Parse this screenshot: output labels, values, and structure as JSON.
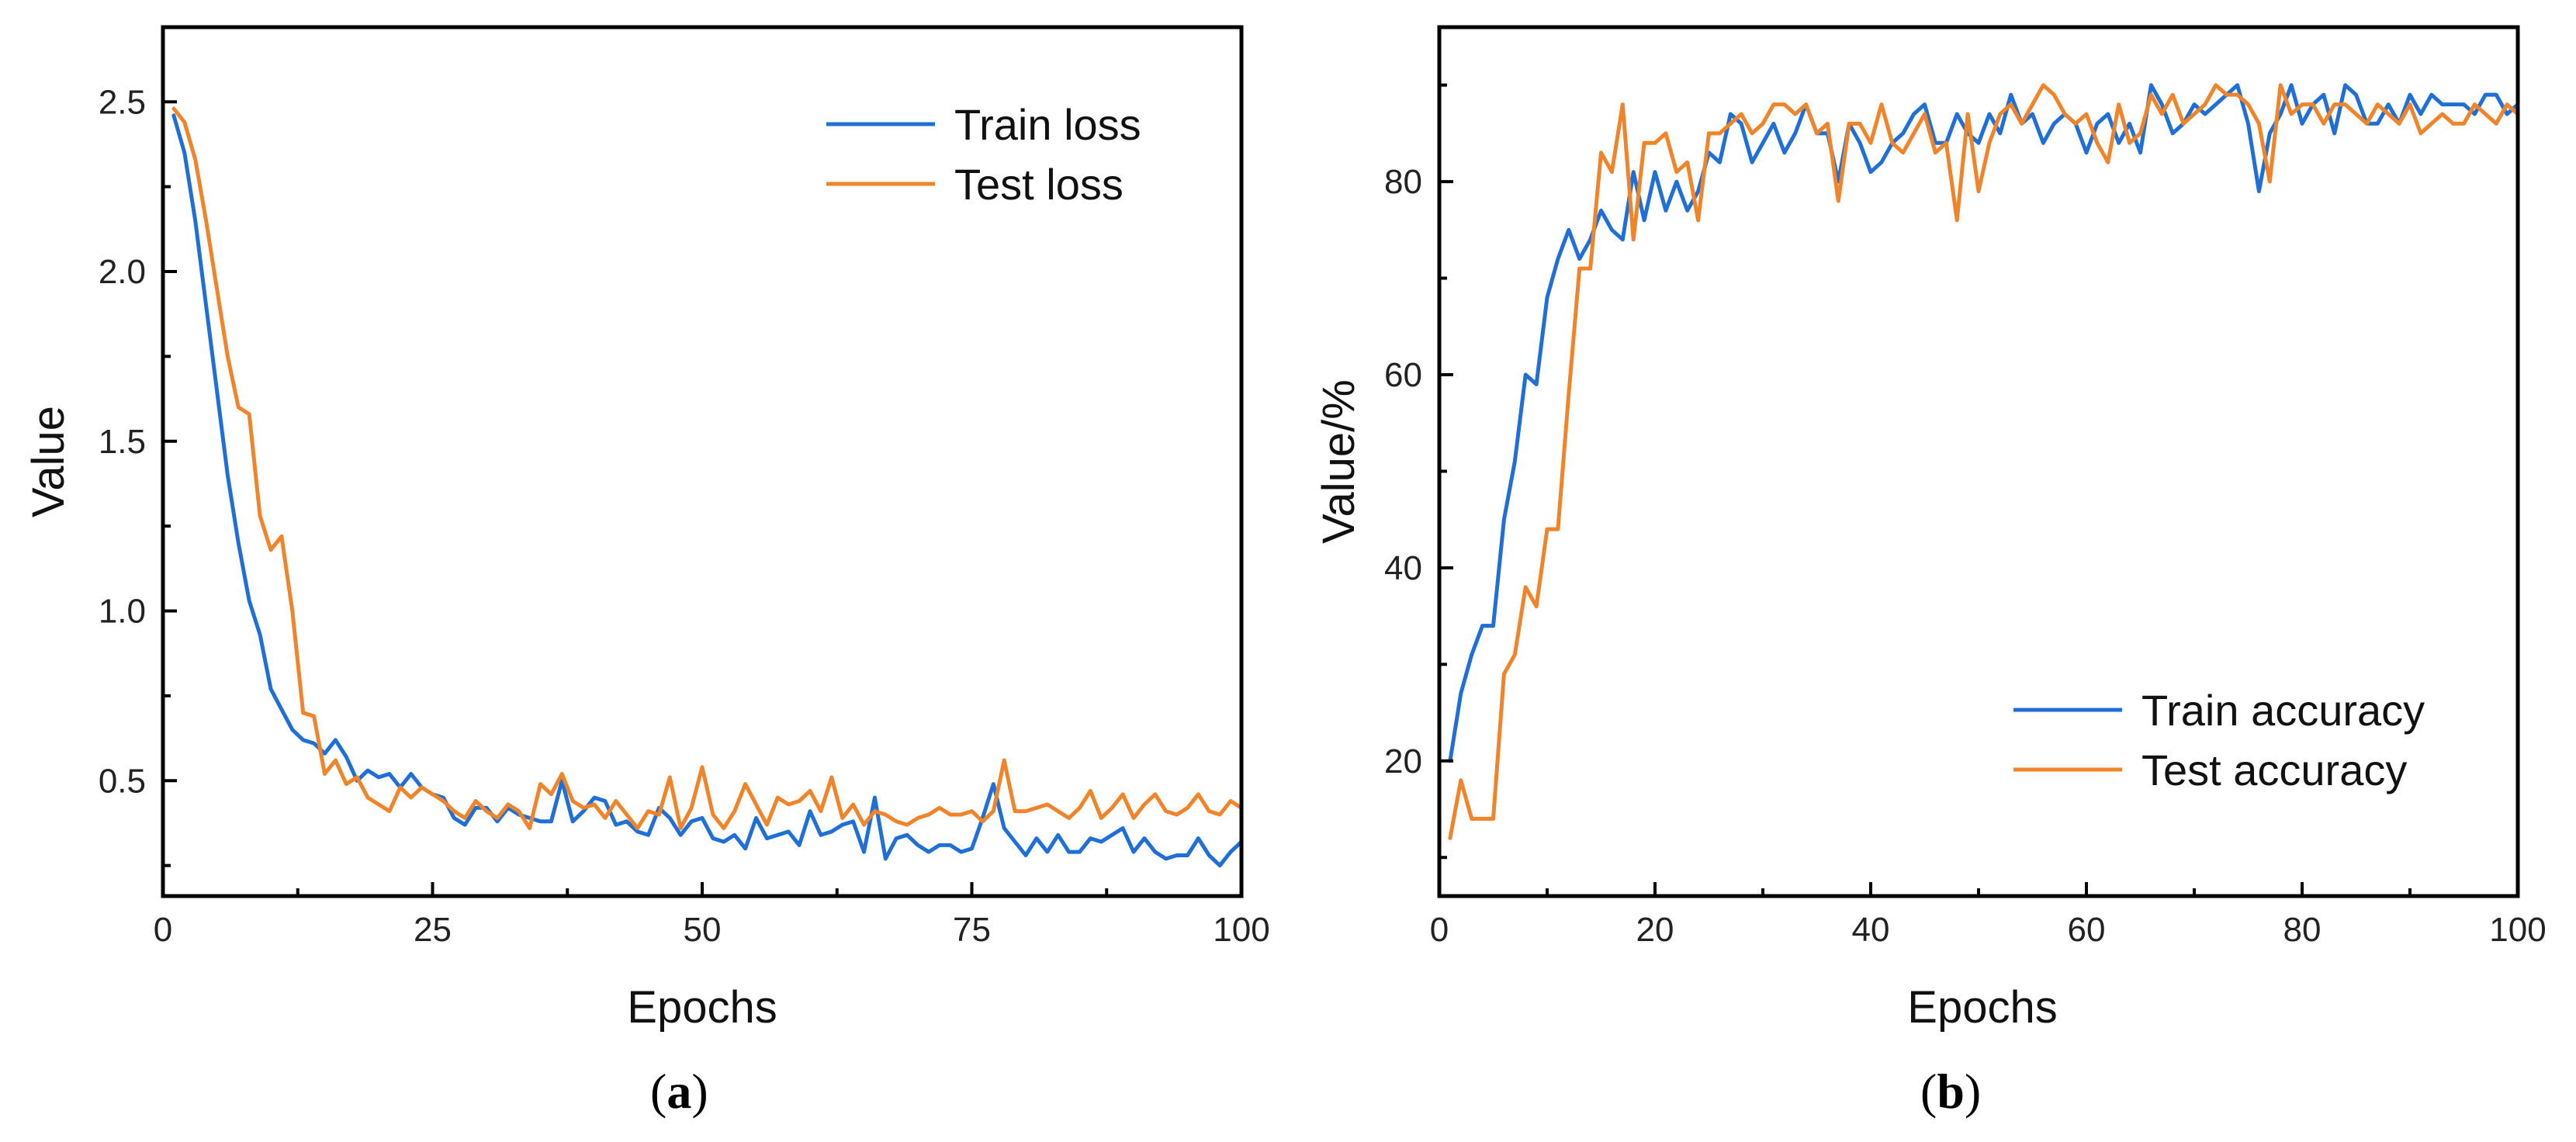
{
  "chart_data": [
    {
      "type": "line",
      "caption": "a",
      "xlabel": "Epochs",
      "ylabel": "Value",
      "xlim": [
        0,
        100
      ],
      "ylim": [
        0.16,
        2.72
      ],
      "xticks": [
        0,
        25,
        50,
        75,
        100
      ],
      "xtick_labels": [
        "0",
        "25",
        "50",
        "75",
        "100"
      ],
      "yticks": [
        0.5,
        1.0,
        1.5,
        2.0,
        2.5
      ],
      "ytick_labels": [
        "0.5",
        "1.0",
        "1.5",
        "2.0",
        "2.5"
      ],
      "legend": "top-right",
      "grid": false,
      "x": [
        1,
        2,
        3,
        4,
        5,
        6,
        7,
        8,
        9,
        10,
        11,
        12,
        13,
        14,
        15,
        16,
        17,
        18,
        19,
        20,
        21,
        22,
        23,
        24,
        25,
        26,
        27,
        28,
        29,
        30,
        31,
        32,
        33,
        34,
        35,
        36,
        37,
        38,
        39,
        40,
        41,
        42,
        43,
        44,
        45,
        46,
        47,
        48,
        49,
        50,
        51,
        52,
        53,
        54,
        55,
        56,
        57,
        58,
        59,
        60,
        61,
        62,
        63,
        64,
        65,
        66,
        67,
        68,
        69,
        70,
        71,
        72,
        73,
        74,
        75,
        76,
        77,
        78,
        79,
        80,
        81,
        82,
        83,
        84,
        85,
        86,
        87,
        88,
        89,
        90,
        91,
        92,
        93,
        94,
        95,
        96,
        97,
        98,
        99,
        100
      ],
      "series": [
        {
          "name": "Train loss",
          "color": "#1f6fd6",
          "values": [
            2.46,
            2.35,
            2.15,
            1.9,
            1.65,
            1.4,
            1.2,
            1.03,
            0.93,
            0.77,
            0.71,
            0.65,
            0.62,
            0.61,
            0.58,
            0.62,
            0.57,
            0.5,
            0.53,
            0.51,
            0.52,
            0.48,
            0.52,
            0.48,
            0.46,
            0.45,
            0.39,
            0.37,
            0.42,
            0.42,
            0.38,
            0.42,
            0.4,
            0.39,
            0.38,
            0.38,
            0.5,
            0.38,
            0.41,
            0.45,
            0.44,
            0.37,
            0.38,
            0.35,
            0.34,
            0.42,
            0.39,
            0.34,
            0.38,
            0.39,
            0.33,
            0.32,
            0.34,
            0.3,
            0.39,
            0.33,
            0.34,
            0.35,
            0.31,
            0.41,
            0.34,
            0.35,
            0.37,
            0.38,
            0.29,
            0.45,
            0.27,
            0.33,
            0.34,
            0.31,
            0.29,
            0.31,
            0.31,
            0.29,
            0.3,
            0.39,
            0.49,
            0.36,
            0.32,
            0.28,
            0.33,
            0.29,
            0.34,
            0.29,
            0.29,
            0.33,
            0.32,
            0.34,
            0.36,
            0.29,
            0.33,
            0.29,
            0.27,
            0.28,
            0.28,
            0.33,
            0.28,
            0.25,
            0.29,
            0.32
          ]
        },
        {
          "name": "Test loss",
          "color": "#f0842a",
          "values": [
            2.48,
            2.44,
            2.33,
            2.15,
            1.95,
            1.75,
            1.6,
            1.58,
            1.28,
            1.18,
            1.22,
            1.0,
            0.7,
            0.69,
            0.52,
            0.56,
            0.49,
            0.51,
            0.45,
            0.43,
            0.41,
            0.48,
            0.45,
            0.48,
            0.46,
            0.44,
            0.41,
            0.39,
            0.44,
            0.41,
            0.39,
            0.43,
            0.41,
            0.36,
            0.49,
            0.46,
            0.52,
            0.44,
            0.42,
            0.43,
            0.39,
            0.44,
            0.4,
            0.36,
            0.41,
            0.4,
            0.51,
            0.36,
            0.42,
            0.54,
            0.4,
            0.36,
            0.41,
            0.49,
            0.43,
            0.37,
            0.45,
            0.43,
            0.44,
            0.47,
            0.41,
            0.51,
            0.39,
            0.43,
            0.37,
            0.41,
            0.4,
            0.38,
            0.37,
            0.39,
            0.4,
            0.42,
            0.4,
            0.4,
            0.41,
            0.38,
            0.41,
            0.56,
            0.41,
            0.41,
            0.42,
            0.43,
            0.41,
            0.39,
            0.42,
            0.47,
            0.39,
            0.42,
            0.46,
            0.39,
            0.43,
            0.46,
            0.41,
            0.4,
            0.42,
            0.46,
            0.41,
            0.4,
            0.44,
            0.42
          ]
        }
      ]
    },
    {
      "type": "line",
      "caption": "b",
      "xlabel": "Epochs",
      "ylabel": "Value/%",
      "xlim": [
        0,
        100
      ],
      "ylim": [
        6,
        96
      ],
      "xticks": [
        0,
        20,
        40,
        60,
        80,
        100
      ],
      "xtick_labels": [
        "0",
        "20",
        "40",
        "60",
        "80",
        "100"
      ],
      "yticks": [
        20,
        40,
        60,
        80
      ],
      "ytick_labels": [
        "20",
        "40",
        "60",
        "80"
      ],
      "legend": "bottom-right",
      "grid": false,
      "x": [
        1,
        2,
        3,
        4,
        5,
        6,
        7,
        8,
        9,
        10,
        11,
        12,
        13,
        14,
        15,
        16,
        17,
        18,
        19,
        20,
        21,
        22,
        23,
        24,
        25,
        26,
        27,
        28,
        29,
        30,
        31,
        32,
        33,
        34,
        35,
        36,
        37,
        38,
        39,
        40,
        41,
        42,
        43,
        44,
        45,
        46,
        47,
        48,
        49,
        50,
        51,
        52,
        53,
        54,
        55,
        56,
        57,
        58,
        59,
        60,
        61,
        62,
        63,
        64,
        65,
        66,
        67,
        68,
        69,
        70,
        71,
        72,
        73,
        74,
        75,
        76,
        77,
        78,
        79,
        80,
        81,
        82,
        83,
        84,
        85,
        86,
        87,
        88,
        89,
        90,
        91,
        92,
        93,
        94,
        95,
        96,
        97,
        98,
        99,
        100
      ],
      "series": [
        {
          "name": "Train accuracy",
          "color": "#1f6fd6",
          "values": [
            20,
            27,
            31,
            34,
            34,
            45,
            51,
            60,
            59,
            68,
            72,
            75,
            72,
            74,
            77,
            75,
            74,
            81,
            76,
            81,
            77,
            80,
            77,
            79,
            83,
            82,
            87,
            86,
            82,
            84,
            86,
            83,
            85,
            88,
            85,
            85,
            80,
            86,
            84,
            81,
            82,
            84,
            85,
            87,
            88,
            84,
            84,
            87,
            85,
            84,
            87,
            85,
            89,
            86,
            87,
            84,
            86,
            87,
            86,
            83,
            86,
            87,
            84,
            86,
            83,
            90,
            88,
            85,
            86,
            88,
            87,
            88,
            89,
            90,
            86,
            79,
            85,
            87,
            90,
            86,
            88,
            89,
            85,
            90,
            89,
            86,
            86,
            88,
            86,
            89,
            87,
            89,
            88,
            88,
            88,
            87,
            89,
            89,
            87,
            88
          ]
        },
        {
          "name": "Test accuracy",
          "color": "#f0842a",
          "values": [
            12,
            18,
            14,
            14,
            14,
            29,
            31,
            38,
            36,
            44,
            44,
            58,
            71,
            71,
            83,
            81,
            88,
            74,
            84,
            84,
            85,
            81,
            82,
            76,
            85,
            85,
            86,
            87,
            85,
            86,
            88,
            88,
            87,
            88,
            85,
            86,
            78,
            86,
            86,
            84,
            88,
            84,
            83,
            85,
            87,
            83,
            84,
            76,
            87,
            79,
            84,
            87,
            88,
            86,
            88,
            90,
            89,
            87,
            86,
            87,
            84,
            82,
            88,
            84,
            85,
            89,
            87,
            89,
            86,
            87,
            88,
            90,
            89,
            89,
            88,
            86,
            80,
            90,
            87,
            88,
            88,
            86,
            88,
            88,
            87,
            86,
            88,
            87,
            86,
            88,
            85,
            86,
            87,
            86,
            86,
            88,
            87,
            86,
            88,
            87
          ]
        }
      ]
    }
  ]
}
